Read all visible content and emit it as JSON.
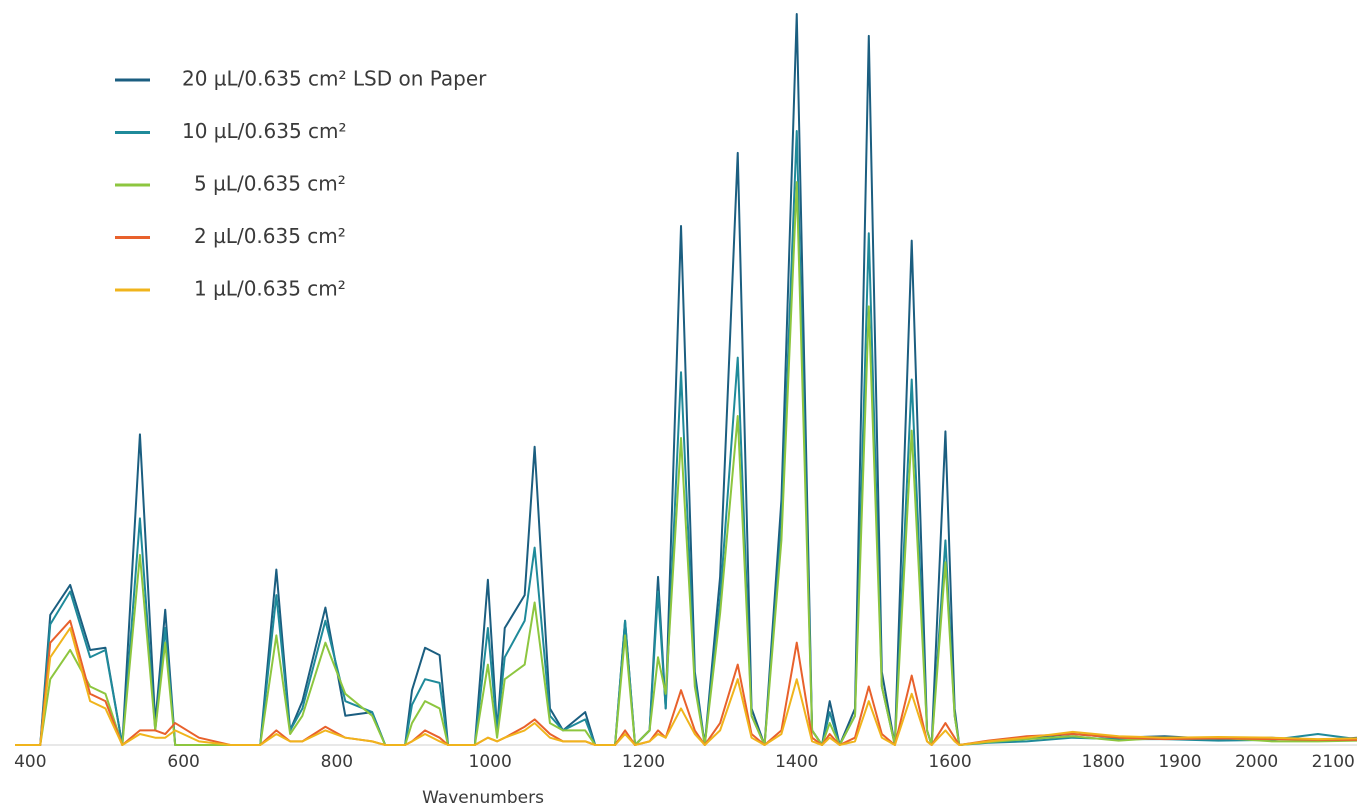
{
  "chart_data": {
    "type": "line",
    "x_label": "Wavenumbers",
    "xlim": [
      380,
      2131
    ],
    "xticks": [
      400,
      600,
      800,
      1000,
      1200,
      1400,
      1600,
      1800,
      1900,
      2000,
      2100
    ],
    "ylim": [
      0,
      100
    ],
    "grid": false,
    "legend": "upper-left",
    "x": [
      380,
      413,
      426,
      452,
      478,
      498,
      520,
      543,
      563,
      576,
      589,
      620,
      661,
      700,
      721,
      739,
      755,
      785,
      811,
      846,
      863,
      889,
      898,
      915,
      934,
      945,
      980,
      997,
      1009,
      1019,
      1045,
      1058,
      1078,
      1095,
      1124,
      1137,
      1163,
      1176,
      1189,
      1208,
      1219,
      1229,
      1249,
      1267,
      1280,
      1300,
      1323,
      1341,
      1358,
      1380,
      1400,
      1420,
      1433,
      1443,
      1456,
      1476,
      1494,
      1511,
      1528,
      1550,
      1570,
      1576,
      1594,
      1606,
      1612,
      1650,
      1700,
      1760,
      1820,
      1880,
      1950,
      2020,
      2080,
      2131
    ],
    "series": [
      {
        "name": "20 µL/0.635 cm² LSD on Paper",
        "color": "#1b5e80",
        "values": [
          0,
          0,
          17.8,
          21.9,
          13,
          13.3,
          0,
          42.5,
          3,
          18.5,
          0,
          0,
          0,
          0,
          24,
          2,
          6,
          18.8,
          4,
          4.5,
          0,
          0,
          7.5,
          13.3,
          12.3,
          0,
          0,
          22.6,
          2,
          16,
          20.5,
          40.8,
          5,
          2,
          4.5,
          0,
          0,
          17,
          0,
          2,
          23,
          5,
          71,
          10,
          0,
          23,
          81,
          5,
          0,
          33.5,
          100,
          2,
          0,
          6,
          0,
          5,
          97,
          10,
          0,
          69,
          2,
          0,
          42.9,
          5,
          0,
          0.5,
          1,
          1.5,
          1,
          1.2,
          0.8,
          1,
          0.6,
          1
        ]
      },
      {
        "name": "10 µL/0.635 cm²",
        "color": "#1f8a9a",
        "values": [
          0,
          0,
          16.5,
          21,
          12,
          13,
          0,
          31,
          2,
          16,
          0,
          0,
          0,
          0,
          20.5,
          2,
          5,
          17,
          6,
          4.5,
          0,
          0,
          5.5,
          9,
          8.5,
          0,
          0,
          16,
          2,
          12,
          17,
          27,
          4,
          2,
          3.5,
          0,
          0,
          17,
          0,
          2,
          21,
          5,
          51,
          9,
          0,
          20,
          53,
          4,
          0,
          30,
          84,
          2,
          0,
          4.5,
          0,
          4,
          70,
          8,
          0,
          50,
          2,
          0,
          28,
          4,
          0,
          0.3,
          0.5,
          1,
          0.8,
          0.8,
          0.6,
          0.7,
          1.5,
          0.8
        ]
      },
      {
        "name": "5 µL/0.635 cm²",
        "color": "#8dc63f",
        "values": [
          0,
          0,
          9,
          13,
          8,
          7,
          0,
          26,
          2,
          14,
          0,
          0,
          0,
          0,
          15,
          1.5,
          4,
          14,
          7,
          4,
          0,
          0,
          3,
          6,
          5,
          0,
          0,
          11,
          1,
          9,
          11,
          19.5,
          3,
          2,
          2,
          0,
          0,
          15,
          0,
          2,
          12,
          7,
          42,
          8,
          0,
          18,
          45,
          4,
          0,
          28,
          77,
          2,
          0,
          3,
          0,
          4,
          60,
          8,
          0,
          43,
          2,
          0,
          25,
          4,
          0,
          0.4,
          0.8,
          1.2,
          0.6,
          1,
          1,
          0.5,
          0.5,
          0.6
        ]
      },
      {
        "name": "2 µL/0.635 cm²",
        "color": "#e8612c",
        "values": [
          0,
          0,
          14,
          17,
          7,
          6,
          0,
          2,
          2,
          1.5,
          3,
          1,
          0,
          0,
          2,
          0.5,
          0.5,
          2.5,
          1,
          0.5,
          0,
          0,
          0.5,
          2,
          1,
          0,
          0,
          1,
          0.5,
          1,
          2.5,
          3.5,
          1.5,
          0.5,
          0.5,
          0,
          0,
          2,
          0,
          0.5,
          2,
          1,
          7.5,
          2,
          0,
          3,
          11,
          1.5,
          0,
          2,
          14,
          1,
          0,
          1.5,
          0,
          1,
          8,
          1.5,
          0,
          9.5,
          0.5,
          0,
          3,
          1,
          0,
          0.6,
          1.2,
          1.5,
          1,
          0.8,
          0.9,
          0.8,
          0.7,
          0.7
        ]
      },
      {
        "name": "1 µL/0.635 cm²",
        "color": "#f0b41c",
        "values": [
          0,
          0,
          12,
          16,
          6,
          5,
          0,
          1.5,
          1,
          1,
          2,
          0.5,
          0,
          0,
          1.5,
          0.5,
          0.5,
          2,
          1,
          0.5,
          0,
          0,
          0.5,
          1.5,
          0.5,
          0,
          0,
          1,
          0.5,
          1,
          2,
          3,
          1,
          0.5,
          0.5,
          0,
          0,
          1.5,
          0,
          0.5,
          1.5,
          1,
          5,
          1.5,
          0,
          2,
          9,
          1,
          0,
          1.5,
          9,
          0.5,
          0,
          1,
          0,
          0.5,
          6,
          1,
          0,
          7,
          0.5,
          0,
          2,
          0.5,
          0,
          0.5,
          1,
          1.8,
          1.2,
          1,
          1.1,
          1,
          0.8,
          0.9
        ]
      }
    ]
  }
}
